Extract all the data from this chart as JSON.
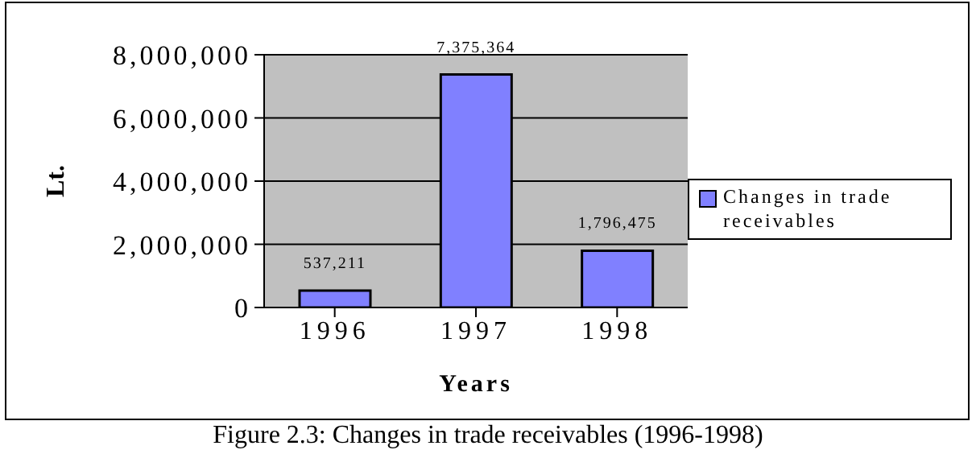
{
  "chart_data": {
    "type": "bar",
    "xlabel": "Years",
    "ylabel": "Lt.",
    "categories": [
      "1996",
      "1997",
      "1998"
    ],
    "series": [
      {
        "name": "Changes in trade receivables",
        "color": "#8080ff",
        "values": [
          537211,
          7375364,
          1796475
        ],
        "value_labels": [
          "537,211",
          "7,375,364",
          "1,796,475"
        ]
      }
    ],
    "ylim": [
      0,
      8000000
    ],
    "yticks": [
      0,
      {
        "value": 2000000,
        "label": "2,000,000"
      },
      {
        "value": 4000000,
        "label": "4,000,000"
      },
      {
        "value": 6000000,
        "label": "6,000,000"
      },
      {
        "value": 8000000,
        "label": "8,000,000"
      }
    ],
    "grid": "y",
    "legend": "right",
    "annotations": [
      "Figure 2.3: Changes in trade receivables (1996-1998)"
    ]
  }
}
